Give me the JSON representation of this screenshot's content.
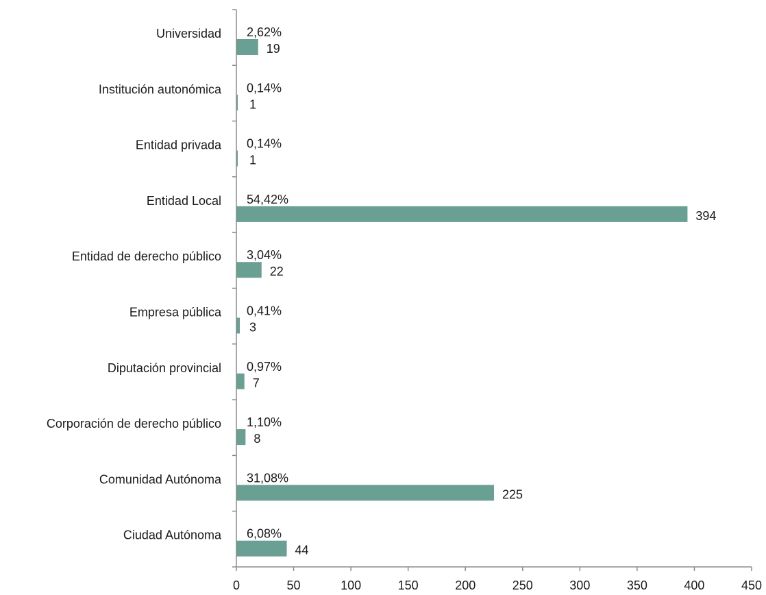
{
  "chart_data": {
    "type": "bar",
    "orientation": "horizontal",
    "title": "",
    "xlabel": "",
    "ylabel": "",
    "xlim": [
      0,
      450
    ],
    "x_ticks": [
      0,
      50,
      100,
      150,
      200,
      250,
      300,
      350,
      400,
      450
    ],
    "grid": false,
    "legend": "none",
    "bar_color": "#6a9f94",
    "categories": [
      "Universidad",
      "Institución autonómica",
      "Entidad privada",
      "Entidad Local",
      "Entidad de derecho público",
      "Empresa pública",
      "Diputación provincial",
      "Corporación de derecho público",
      "Comunidad Autónoma",
      "Ciudad Autónoma"
    ],
    "values": [
      19,
      1,
      1,
      394,
      22,
      3,
      7,
      8,
      225,
      44
    ],
    "percent_labels": [
      "2,62%",
      "0,14%",
      "0,14%",
      "54,42%",
      "3,04%",
      "0,41%",
      "0,97%",
      "1,10%",
      "31,08%",
      "6,08%"
    ]
  }
}
